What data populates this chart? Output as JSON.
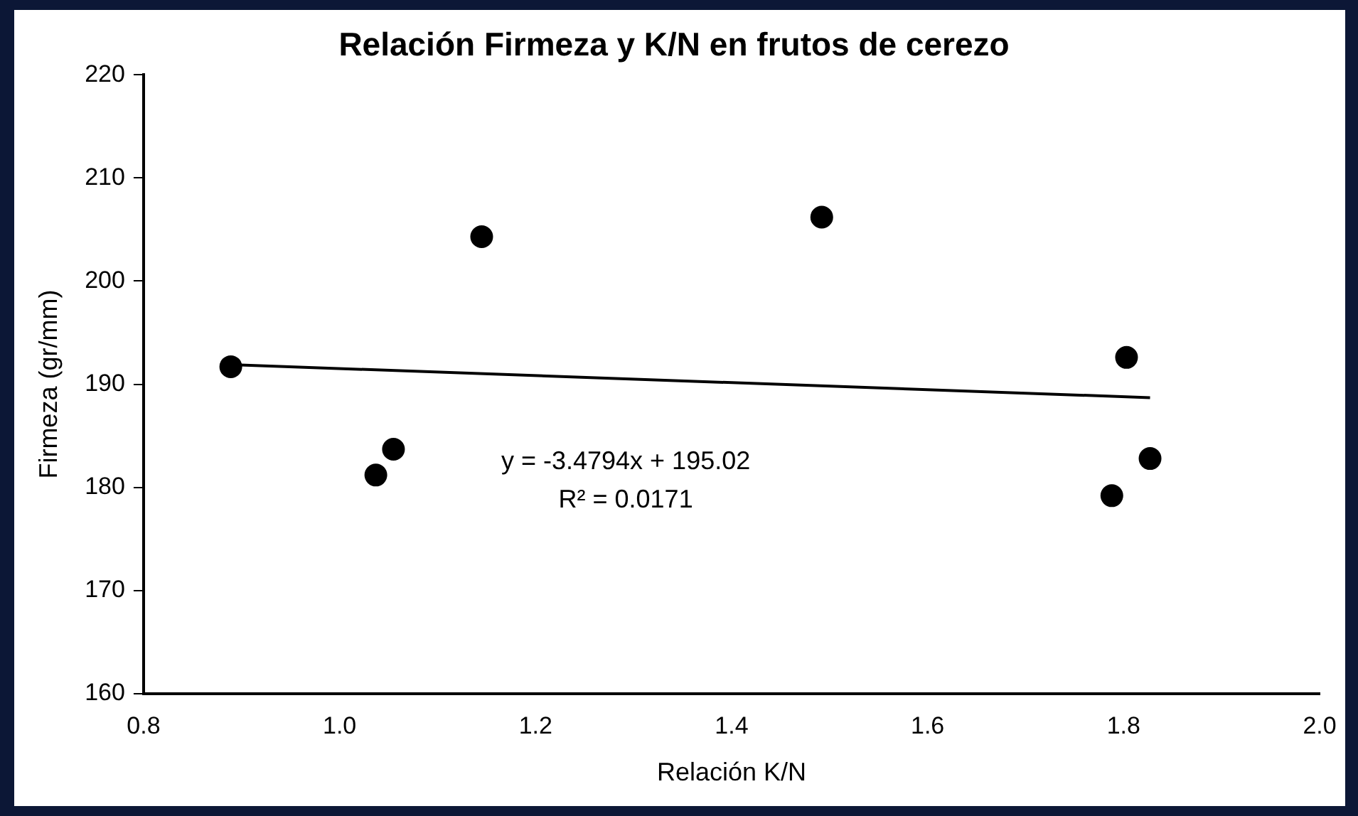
{
  "chart_data": {
    "type": "scatter",
    "title": "Relación Firmeza y K/N en frutos de cerezo",
    "xlabel": "Relación K/N",
    "ylabel": "Firmeza (gr/mm)",
    "series": [
      {
        "color": "#000000",
        "x": [
          0.889,
          1.055,
          1.037,
          1.145,
          1.492,
          1.803,
          1.827,
          1.788
        ],
        "values": [
          191.7,
          183.7,
          181.2,
          204.3,
          206.2,
          192.6,
          182.8,
          179.2
        ]
      },
      {
        "type": "line",
        "marker": "none",
        "color": "#000000",
        "x": [
          0.889,
          1.827
        ],
        "values": [
          191.9,
          188.7
        ]
      }
    ],
    "annotations": [
      "y = -3.4794x + 195.02",
      "R² = 0.0171"
    ],
    "xlim": [
      0.8,
      2.0
    ],
    "xticks": [
      {
        "value": 0.8,
        "label": "0.8"
      },
      {
        "value": 1.0,
        "label": "1.0"
      },
      {
        "value": 1.2,
        "label": "1.2"
      },
      {
        "value": 1.4,
        "label": "1.4"
      },
      {
        "value": 1.6,
        "label": "1.6"
      },
      {
        "value": 1.8,
        "label": "1.8"
      },
      {
        "value": 2.0,
        "label": "2.0"
      }
    ],
    "ylim": [
      160,
      220
    ],
    "yticks": [
      160,
      170,
      180,
      190,
      200,
      210,
      220
    ],
    "grid": false,
    "legend": false,
    "marker": "circle"
  }
}
